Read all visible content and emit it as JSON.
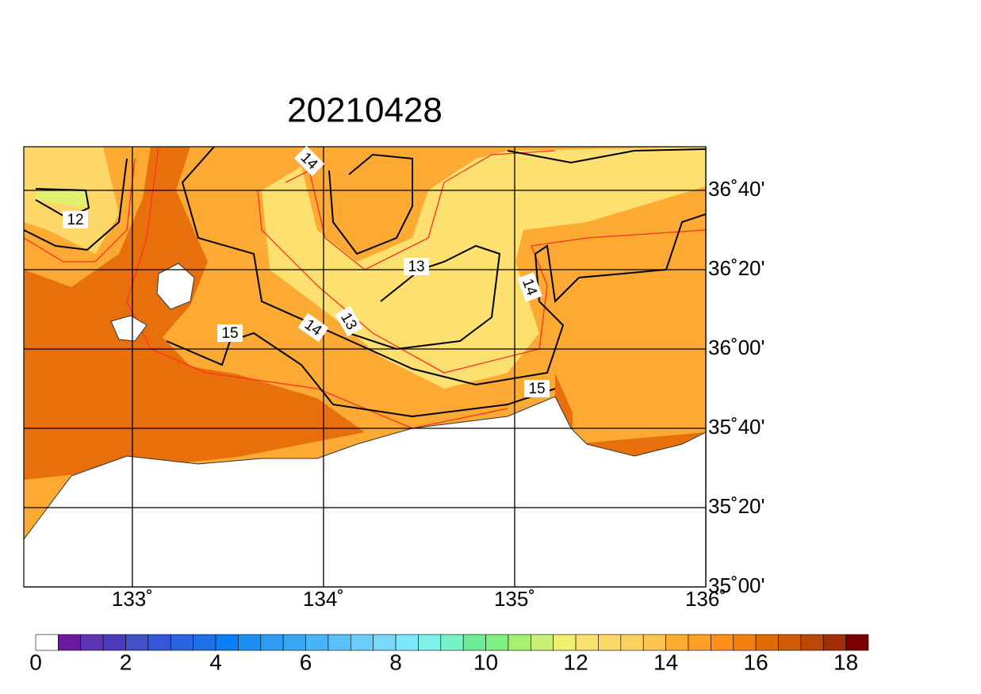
{
  "title": "20210428",
  "map": {
    "xlim": [
      132.432,
      136
    ],
    "ylim": [
      35,
      36.85
    ],
    "xticks": [
      {
        "value": 133,
        "label": "133˚"
      },
      {
        "value": 134,
        "label": "134˚"
      },
      {
        "value": 135,
        "label": "135˚"
      },
      {
        "value": 136,
        "label": "136˚"
      }
    ],
    "yticks": [
      {
        "value": 35,
        "label": "35˚00'"
      },
      {
        "value": 35.3333,
        "label": "35˚20'"
      },
      {
        "value": 35.6667,
        "label": "35˚40'"
      },
      {
        "value": 36,
        "label": "36˚00'"
      },
      {
        "value": 36.3333,
        "label": "36˚20'"
      },
      {
        "value": 36.6667,
        "label": "36˚40'"
      }
    ],
    "contour_labels": [
      12,
      14,
      13,
      14,
      14,
      13,
      15,
      15
    ]
  },
  "colorbar": {
    "range": [
      0,
      18.5
    ],
    "ticks": [
      0,
      2,
      4,
      6,
      8,
      10,
      12,
      14,
      16,
      18
    ],
    "colors": [
      "#ffffff",
      "#6a1b9a",
      "#5e35b1",
      "#4a3cb8",
      "#3f51c5",
      "#3656d8",
      "#2b63e0",
      "#1e6fe8",
      "#0a7ff5",
      "#1e8ef0",
      "#2e9cf0",
      "#3aa6f0",
      "#4bb4f5",
      "#5cc0f8",
      "#6ccef8",
      "#7ad9fa",
      "#80e8fc",
      "#80f0e8",
      "#78f0c8",
      "#70ec98",
      "#80f080",
      "#a8f070",
      "#c8f078",
      "#f0f070",
      "#fce070",
      "#fcd868",
      "#fcd060",
      "#fcc450",
      "#fcac30",
      "#fca028",
      "#fc9018",
      "#f08010",
      "#e06c08",
      "#d05c08",
      "#b84808",
      "#a03008",
      "#7a0000"
    ]
  }
}
